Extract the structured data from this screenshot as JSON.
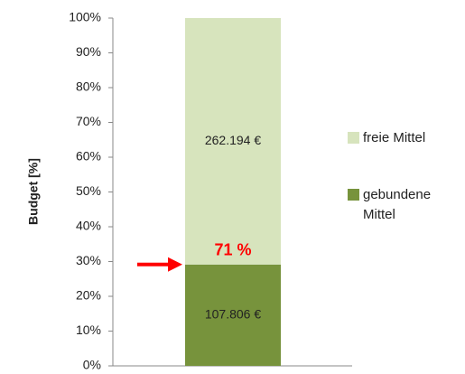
{
  "chart_data": {
    "type": "stacked_bar",
    "y_label": "Budget [%]",
    "categories": [
      null
    ],
    "series": [
      {
        "name": "gebundene Mittel",
        "color": "#77933c",
        "values": [
          29.14
        ],
        "value_labels": [
          "107.806 €"
        ]
      },
      {
        "name": "freie Mittel",
        "color": "#d7e4bd",
        "values": [
          70.86
        ],
        "value_labels": [
          "262.194 €"
        ]
      }
    ],
    "annotation": "71 %",
    "ylim": [
      0,
      100
    ],
    "yticks": [
      {
        "value": 0,
        "label": "0%"
      },
      {
        "value": 10,
        "label": "10%"
      },
      {
        "value": 20,
        "label": "20%"
      },
      {
        "value": 30,
        "label": "30%"
      },
      {
        "value": 40,
        "label": "40%"
      },
      {
        "value": 50,
        "label": "50%"
      },
      {
        "value": 60,
        "label": "60%"
      },
      {
        "value": 70,
        "label": "70%"
      },
      {
        "value": 80,
        "label": "80%"
      },
      {
        "value": 90,
        "label": "90%"
      },
      {
        "value": 100,
        "label": "100%"
      }
    ]
  }
}
